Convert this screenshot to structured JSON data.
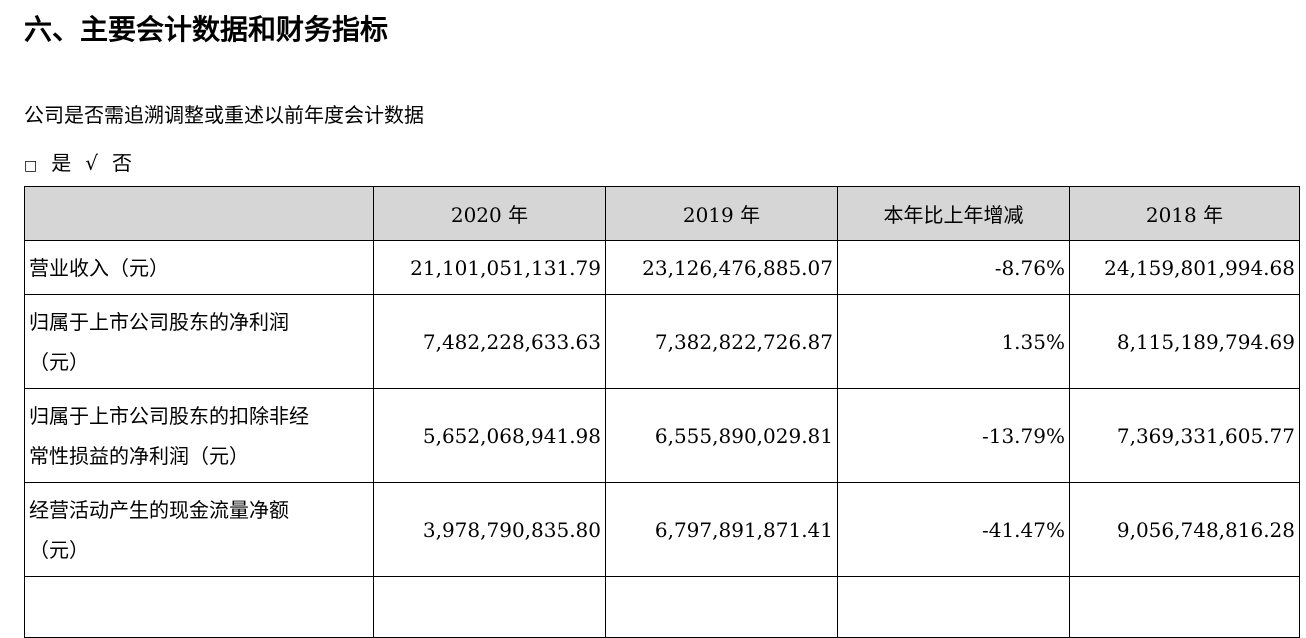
{
  "section_title": "六、主要会计数据和财务指标",
  "question": "公司是否需追溯调整或重述以前年度会计数据",
  "options": {
    "box": "□",
    "yes": "是",
    "check": "√",
    "no": "否"
  },
  "table": {
    "headers": [
      "",
      "2020 年",
      "2019 年",
      "本年比上年增减",
      "2018 年"
    ],
    "rows": [
      {
        "label_lines": [
          "营业收入（元）"
        ],
        "values": [
          "21,101,051,131.79",
          "23,126,476,885.07",
          "-8.76%",
          "24,159,801,994.68"
        ]
      },
      {
        "label_lines": [
          "归属于上市公司股东的净利润",
          "（元）"
        ],
        "values": [
          "7,482,228,633.63",
          "7,382,822,726.87",
          "1.35%",
          "8,115,189,794.69"
        ]
      },
      {
        "label_lines": [
          "归属于上市公司股东的扣除非经",
          "常性损益的净利润（元）"
        ],
        "values": [
          "5,652,068,941.98",
          "6,555,890,029.81",
          "-13.79%",
          "7,369,331,605.77"
        ]
      },
      {
        "label_lines": [
          "经营活动产生的现金流量净额",
          "（元）"
        ],
        "values": [
          "3,978,790,835.80",
          "6,797,891,871.41",
          "-41.47%",
          "9,056,748,816.28"
        ]
      }
    ]
  }
}
